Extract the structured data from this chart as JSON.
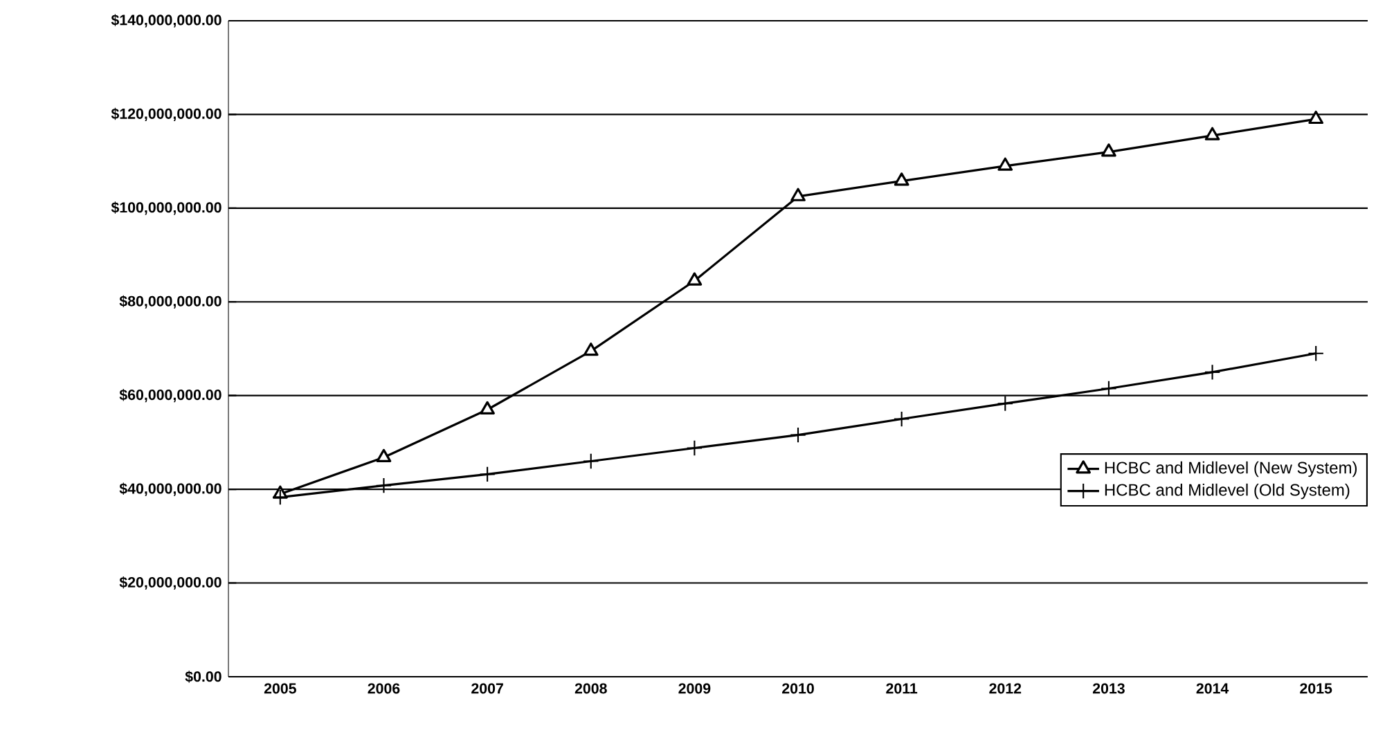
{
  "chart_data": {
    "type": "line",
    "categories": [
      "2005",
      "2006",
      "2007",
      "2008",
      "2009",
      "2010",
      "2011",
      "2012",
      "2013",
      "2014",
      "2015"
    ],
    "series": [
      {
        "name": "HCBC and Midlevel (New System)",
        "color": "#000000",
        "marker": "triangle",
        "values": [
          39000000,
          46800000,
          57000000,
          69500000,
          84500000,
          102500000,
          105800000,
          109000000,
          112000000,
          115500000,
          119000000
        ]
      },
      {
        "name": "HCBC and Midlevel (Old System)",
        "color": "#000000",
        "marker": "cross",
        "values": [
          38300000,
          40800000,
          43200000,
          46000000,
          48800000,
          51600000,
          55000000,
          58300000,
          61500000,
          65000000,
          69000000
        ]
      }
    ],
    "ylim": [
      0,
      140000000
    ],
    "yticks": [
      {
        "value": 0,
        "label": "$0.00"
      },
      {
        "value": 20000000,
        "label": "$20,000,000.00"
      },
      {
        "value": 40000000,
        "label": "$40,000,000.00"
      },
      {
        "value": 60000000,
        "label": "$60,000,000.00"
      },
      {
        "value": 80000000,
        "label": "$80,000,000.00"
      },
      {
        "value": 100000000,
        "label": "$100,000,000.00"
      },
      {
        "value": 120000000,
        "label": "$120,000,000.00"
      },
      {
        "value": 140000000,
        "label": "$140,000,000.00"
      }
    ],
    "grid": "y",
    "legend": "right",
    "line_style": "solid"
  }
}
